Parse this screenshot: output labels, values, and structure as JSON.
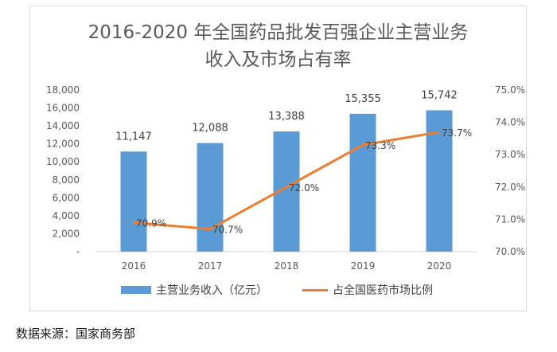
{
  "chart_data": {
    "type": "bar",
    "title_line1": "2016-2020 年全国药品批发百强企业主营业务",
    "title_line2": "收入及市场占有率",
    "categories": [
      "2016",
      "2017",
      "2018",
      "2019",
      "2020"
    ],
    "series": [
      {
        "name": "主营业务收入（亿元）",
        "type": "bar",
        "axis": "left",
        "color": "#5b9bd5",
        "values": [
          11147,
          12088,
          13388,
          15355,
          15742
        ],
        "labels": [
          "11,147",
          "12,088",
          "13,388",
          "15,355",
          "15,742"
        ]
      },
      {
        "name": "占全国医药市场比例",
        "type": "line",
        "axis": "right",
        "color": "#ed7d31",
        "values": [
          70.9,
          70.7,
          72.0,
          73.3,
          73.7
        ],
        "labels": [
          "70.9%",
          "70.7%",
          "72.0%",
          "73.3%",
          "73.7%"
        ]
      }
    ],
    "y_left": {
      "ylim": [
        0,
        18000
      ],
      "ticks": [
        "-",
        "2,000",
        "4,000",
        "6,000",
        "8,000",
        "10,000",
        "12,000",
        "14,000",
        "16,000",
        "18,000"
      ]
    },
    "y_right": {
      "ylim": [
        70.0,
        75.0
      ],
      "ticks": [
        "70.0%",
        "71.0%",
        "72.0%",
        "73.0%",
        "74.0%",
        "75.0%"
      ]
    },
    "grid": false,
    "legend_position": "bottom"
  },
  "source_note": "数据来源：国家商务部"
}
